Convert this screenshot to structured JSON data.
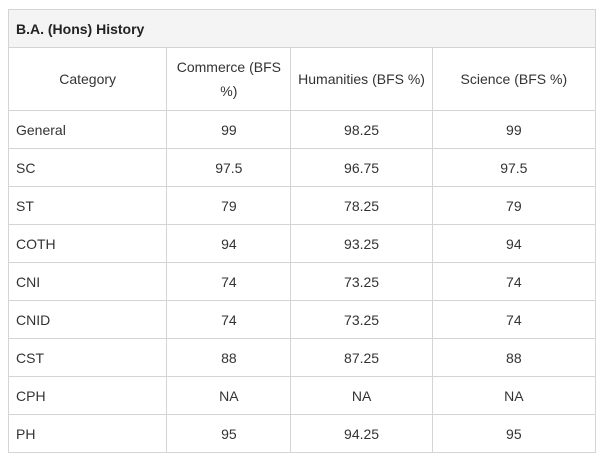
{
  "table": {
    "title": "B.A. (Hons) History",
    "headers": [
      "Category",
      "Commerce (BFS %)",
      "Humanities (BFS %)",
      "Science (BFS %)"
    ],
    "rows": [
      [
        "General",
        "99",
        "98.25",
        "99"
      ],
      [
        "SC",
        "97.5",
        "96.75",
        "97.5"
      ],
      [
        "ST",
        "79",
        "78.25",
        "79"
      ],
      [
        "COTH",
        "94",
        "93.25",
        "94"
      ],
      [
        "CNI",
        "74",
        "73.25",
        "74"
      ],
      [
        "CNID",
        "74",
        "73.25",
        "74"
      ],
      [
        "CST",
        "88",
        "87.25",
        "88"
      ],
      [
        "CPH",
        "NA",
        "NA",
        "NA"
      ],
      [
        "PH",
        "95",
        "94.25",
        "95"
      ]
    ]
  }
}
